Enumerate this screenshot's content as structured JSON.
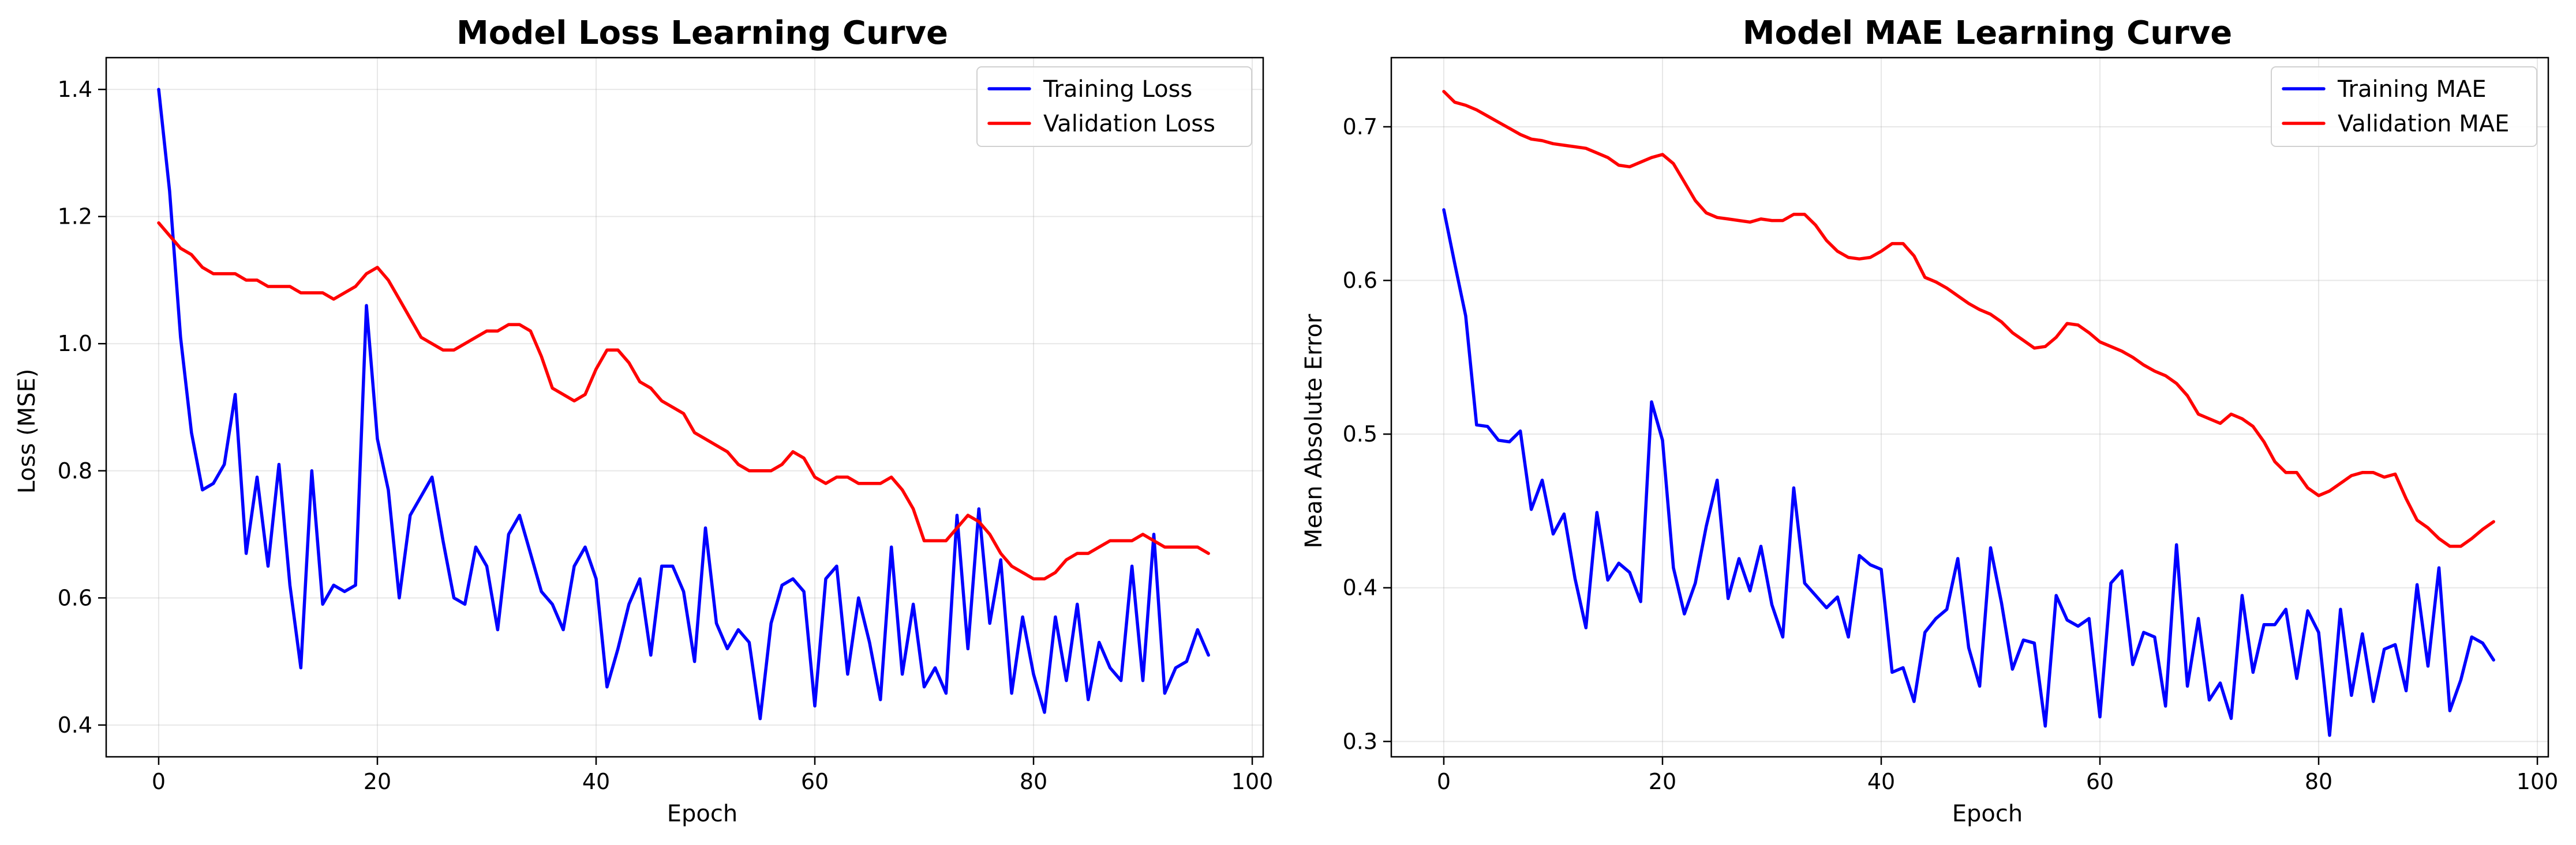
{
  "chart_data": [
    {
      "type": "line",
      "title": "Model Loss Learning Curve",
      "xlabel": "Epoch",
      "ylabel": "Loss (MSE)",
      "xlim": [
        -4.8,
        101
      ],
      "ylim": [
        0.35,
        1.45
      ],
      "xticks": [
        0,
        20,
        40,
        60,
        80,
        100
      ],
      "xtick_labels": [
        "0",
        "20",
        "40",
        "60",
        "80",
        "100"
      ],
      "yticks": [
        0.4,
        0.6,
        0.8,
        1.0,
        1.2,
        1.4
      ],
      "ytick_labels": [
        "0.4",
        "0.6",
        "0.8",
        "1.0",
        "1.2",
        "1.4"
      ],
      "grid": true,
      "legend_position": "top-right",
      "series": [
        {
          "name": "Training Loss",
          "color": "#0000ff",
          "values": [
            1.4,
            1.24,
            1.01,
            0.86,
            0.77,
            0.78,
            0.81,
            0.92,
            0.67,
            0.79,
            0.65,
            0.81,
            0.62,
            0.49,
            0.8,
            0.59,
            0.62,
            0.61,
            0.62,
            1.06,
            0.85,
            0.77,
            0.6,
            0.73,
            0.76,
            0.79,
            0.69,
            0.6,
            0.59,
            0.68,
            0.65,
            0.55,
            0.7,
            0.73,
            0.67,
            0.61,
            0.59,
            0.55,
            0.65,
            0.68,
            0.63,
            0.46,
            0.52,
            0.59,
            0.63,
            0.51,
            0.65,
            0.65,
            0.61,
            0.5,
            0.71,
            0.56,
            0.52,
            0.55,
            0.53,
            0.41,
            0.56,
            0.62,
            0.63,
            0.61,
            0.43,
            0.63,
            0.65,
            0.48,
            0.6,
            0.53,
            0.44,
            0.68,
            0.48,
            0.59,
            0.46,
            0.49,
            0.45,
            0.73,
            0.52,
            0.74,
            0.56,
            0.66,
            0.45,
            0.57,
            0.48,
            0.42,
            0.57,
            0.47,
            0.59,
            0.44,
            0.53,
            0.49,
            0.47,
            0.65,
            0.47,
            0.7,
            0.45,
            0.49,
            0.5,
            0.55,
            0.51
          ]
        },
        {
          "name": "Validation Loss",
          "color": "#ff0000",
          "values": [
            1.19,
            1.17,
            1.15,
            1.14,
            1.12,
            1.11,
            1.11,
            1.11,
            1.1,
            1.1,
            1.09,
            1.09,
            1.09,
            1.08,
            1.08,
            1.08,
            1.07,
            1.08,
            1.09,
            1.11,
            1.12,
            1.1,
            1.07,
            1.04,
            1.01,
            1.0,
            0.99,
            0.99,
            1.0,
            1.01,
            1.02,
            1.02,
            1.03,
            1.03,
            1.02,
            0.98,
            0.93,
            0.92,
            0.91,
            0.92,
            0.96,
            0.99,
            0.99,
            0.97,
            0.94,
            0.93,
            0.91,
            0.9,
            0.89,
            0.86,
            0.85,
            0.84,
            0.83,
            0.81,
            0.8,
            0.8,
            0.8,
            0.81,
            0.83,
            0.82,
            0.79,
            0.78,
            0.79,
            0.79,
            0.78,
            0.78,
            0.78,
            0.79,
            0.77,
            0.74,
            0.69,
            0.69,
            0.69,
            0.71,
            0.73,
            0.72,
            0.7,
            0.67,
            0.65,
            0.64,
            0.63,
            0.63,
            0.64,
            0.66,
            0.67,
            0.67,
            0.68,
            0.69,
            0.69,
            0.69,
            0.7,
            0.69,
            0.68,
            0.68,
            0.68,
            0.68,
            0.67
          ]
        }
      ]
    },
    {
      "type": "line",
      "title": "Model MAE Learning Curve",
      "xlabel": "Epoch",
      "ylabel": "Mean Absolute Error",
      "xlim": [
        -4.8,
        101
      ],
      "ylim": [
        0.29,
        0.745
      ],
      "xticks": [
        0,
        20,
        40,
        60,
        80,
        100
      ],
      "xtick_labels": [
        "0",
        "20",
        "40",
        "60",
        "80",
        "100"
      ],
      "yticks": [
        0.3,
        0.4,
        0.5,
        0.6,
        0.7
      ],
      "ytick_labels": [
        "0.3",
        "0.4",
        "0.5",
        "0.6",
        "0.7"
      ],
      "grid": true,
      "legend_position": "top-right",
      "series": [
        {
          "name": "Training MAE",
          "color": "#0000ff",
          "values": [
            0.646,
            0.611,
            0.577,
            0.506,
            0.505,
            0.496,
            0.495,
            0.502,
            0.451,
            0.47,
            0.435,
            0.448,
            0.406,
            0.374,
            0.449,
            0.405,
            0.416,
            0.41,
            0.391,
            0.521,
            0.496,
            0.413,
            0.383,
            0.403,
            0.44,
            0.47,
            0.393,
            0.419,
            0.398,
            0.427,
            0.389,
            0.368,
            0.465,
            0.403,
            0.395,
            0.387,
            0.394,
            0.368,
            0.421,
            0.415,
            0.412,
            0.345,
            0.348,
            0.326,
            0.371,
            0.38,
            0.386,
            0.419,
            0.361,
            0.336,
            0.426,
            0.39,
            0.347,
            0.366,
            0.364,
            0.31,
            0.395,
            0.379,
            0.375,
            0.38,
            0.316,
            0.403,
            0.411,
            0.35,
            0.371,
            0.368,
            0.323,
            0.428,
            0.336,
            0.38,
            0.327,
            0.338,
            0.315,
            0.395,
            0.345,
            0.376,
            0.376,
            0.386,
            0.341,
            0.385,
            0.371,
            0.304,
            0.386,
            0.33,
            0.37,
            0.326,
            0.36,
            0.363,
            0.333,
            0.402,
            0.349,
            0.413,
            0.32,
            0.34,
            0.368,
            0.364,
            0.353
          ]
        },
        {
          "name": "Validation MAE",
          "color": "#ff0000",
          "values": [
            0.723,
            0.716,
            0.714,
            0.711,
            0.707,
            0.703,
            0.699,
            0.695,
            0.692,
            0.691,
            0.689,
            0.688,
            0.687,
            0.686,
            0.683,
            0.68,
            0.675,
            0.674,
            0.677,
            0.68,
            0.682,
            0.676,
            0.664,
            0.652,
            0.644,
            0.641,
            0.64,
            0.639,
            0.638,
            0.64,
            0.639,
            0.639,
            0.643,
            0.643,
            0.636,
            0.626,
            0.619,
            0.615,
            0.614,
            0.615,
            0.619,
            0.624,
            0.624,
            0.616,
            0.602,
            0.599,
            0.595,
            0.59,
            0.585,
            0.581,
            0.578,
            0.573,
            0.566,
            0.561,
            0.556,
            0.557,
            0.563,
            0.572,
            0.571,
            0.566,
            0.56,
            0.557,
            0.554,
            0.55,
            0.545,
            0.541,
            0.538,
            0.533,
            0.525,
            0.513,
            0.51,
            0.507,
            0.513,
            0.51,
            0.505,
            0.495,
            0.482,
            0.475,
            0.475,
            0.465,
            0.46,
            0.463,
            0.468,
            0.473,
            0.475,
            0.475,
            0.472,
            0.474,
            0.458,
            0.444,
            0.439,
            0.432,
            0.427,
            0.427,
            0.432,
            0.438,
            0.443
          ]
        }
      ]
    }
  ]
}
